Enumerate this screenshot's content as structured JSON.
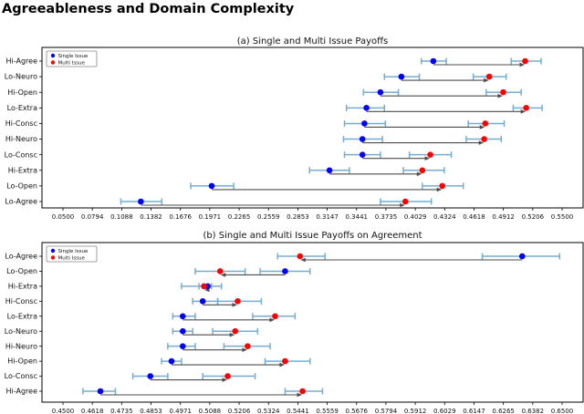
{
  "page_title": "Agreeableness and Domain Complexity",
  "colors": {
    "single": "#0000ff",
    "multi": "#ff0000",
    "errorbar": "#74add1",
    "arrow": "#4d4d4d",
    "axis": "#000000"
  },
  "legend": {
    "position": "upper left",
    "entries": [
      {
        "label": "Single Issue",
        "color_key": "single"
      },
      {
        "label": "Multi Issue",
        "color_key": "multi"
      }
    ]
  },
  "chart_data": [
    {
      "type": "scatter",
      "title": "(a) Single and Multi Issue Payoffs",
      "orientation": "horizontal",
      "grid": false,
      "xlim": [
        0.05,
        0.55
      ],
      "xtick_labels": [
        "0.0500",
        "0.0794",
        "0.1088",
        "0.1382",
        "0.1676",
        "0.1971",
        "0.2265",
        "0.2559",
        "0.2853",
        "0.3147",
        "0.3441",
        "0.3735",
        "0.4029",
        "0.4324",
        "0.4618",
        "0.4912",
        "0.5206",
        "0.5500"
      ],
      "categories": [
        "Hi-Agree",
        "Lo-Neuro",
        "Hi-Open",
        "Lo-Extra",
        "Hi-Consc",
        "Hi-Neuro",
        "Lo-Consc",
        "Hi-Extra",
        "Lo-Open",
        "Lo-Agree"
      ],
      "arrows": "single-to-multi",
      "series": [
        {
          "name": "Single Issue",
          "color": "#0000ff",
          "values": [
            0.421,
            0.389,
            0.368,
            0.354,
            0.352,
            0.35,
            0.35,
            0.317,
            0.199,
            0.128
          ],
          "err_low": [
            0.409,
            0.372,
            0.351,
            0.334,
            0.332,
            0.331,
            0.332,
            0.297,
            0.178,
            0.108
          ],
          "err_high": [
            0.434,
            0.407,
            0.386,
            0.372,
            0.373,
            0.37,
            0.368,
            0.337,
            0.221,
            0.149
          ]
        },
        {
          "name": "Multi Issue",
          "color": "#ff0000",
          "values": [
            0.513,
            0.477,
            0.491,
            0.514,
            0.473,
            0.472,
            0.418,
            0.41,
            0.43,
            0.393
          ],
          "err_low": [
            0.499,
            0.461,
            0.474,
            0.501,
            0.456,
            0.454,
            0.397,
            0.391,
            0.41,
            0.368
          ],
          "err_high": [
            0.529,
            0.494,
            0.509,
            0.53,
            0.492,
            0.489,
            0.439,
            0.432,
            0.451,
            0.419
          ]
        }
      ]
    },
    {
      "type": "scatter",
      "title": "(b) Single and Multi Issue Payoffs on Agreement",
      "orientation": "horizontal",
      "grid": false,
      "xlim": [
        0.45,
        0.65
      ],
      "xtick_labels": [
        "0.4500",
        "0.4618",
        "0.4735",
        "0.4853",
        "0.4971",
        "0.5088",
        "0.5206",
        "0.5324",
        "0.5441",
        "0.5559",
        "0.5676",
        "0.5794",
        "0.5912",
        "0.6029",
        "0.6147",
        "0.6265",
        "0.6382",
        "0.6500"
      ],
      "categories": [
        "Lo-Agree",
        "Lo-Open",
        "Hi-Extra",
        "Hi-Consc",
        "Lo-Extra",
        "Lo-Neuro",
        "Hi-Neuro",
        "Hi-Open",
        "Lo-Consc",
        "Hi-Agree"
      ],
      "arrows": "single-to-multi",
      "series": [
        {
          "name": "Single Issue",
          "color": "#0000ff",
          "values": [
            0.634,
            0.539,
            0.508,
            0.506,
            0.498,
            0.498,
            0.498,
            0.4935,
            0.485,
            0.465
          ],
          "err_low": [
            0.618,
            0.529,
            0.4975,
            0.502,
            0.494,
            0.494,
            0.492,
            0.4895,
            0.478,
            0.458
          ],
          "err_high": [
            0.649,
            0.549,
            0.5095,
            0.512,
            0.503,
            0.502,
            0.503,
            0.4975,
            0.492,
            0.471
          ]
        },
        {
          "name": "Multi Issue",
          "color": "#ff0000",
          "values": [
            0.545,
            0.513,
            0.5065,
            0.52,
            0.535,
            0.519,
            0.524,
            0.539,
            0.516,
            0.546
          ],
          "err_low": [
            0.536,
            0.503,
            0.5045,
            0.512,
            0.526,
            0.51,
            0.5145,
            0.531,
            0.506,
            0.539
          ],
          "err_high": [
            0.555,
            0.523,
            0.5135,
            0.5295,
            0.543,
            0.528,
            0.533,
            0.549,
            0.527,
            0.554
          ]
        }
      ]
    }
  ]
}
